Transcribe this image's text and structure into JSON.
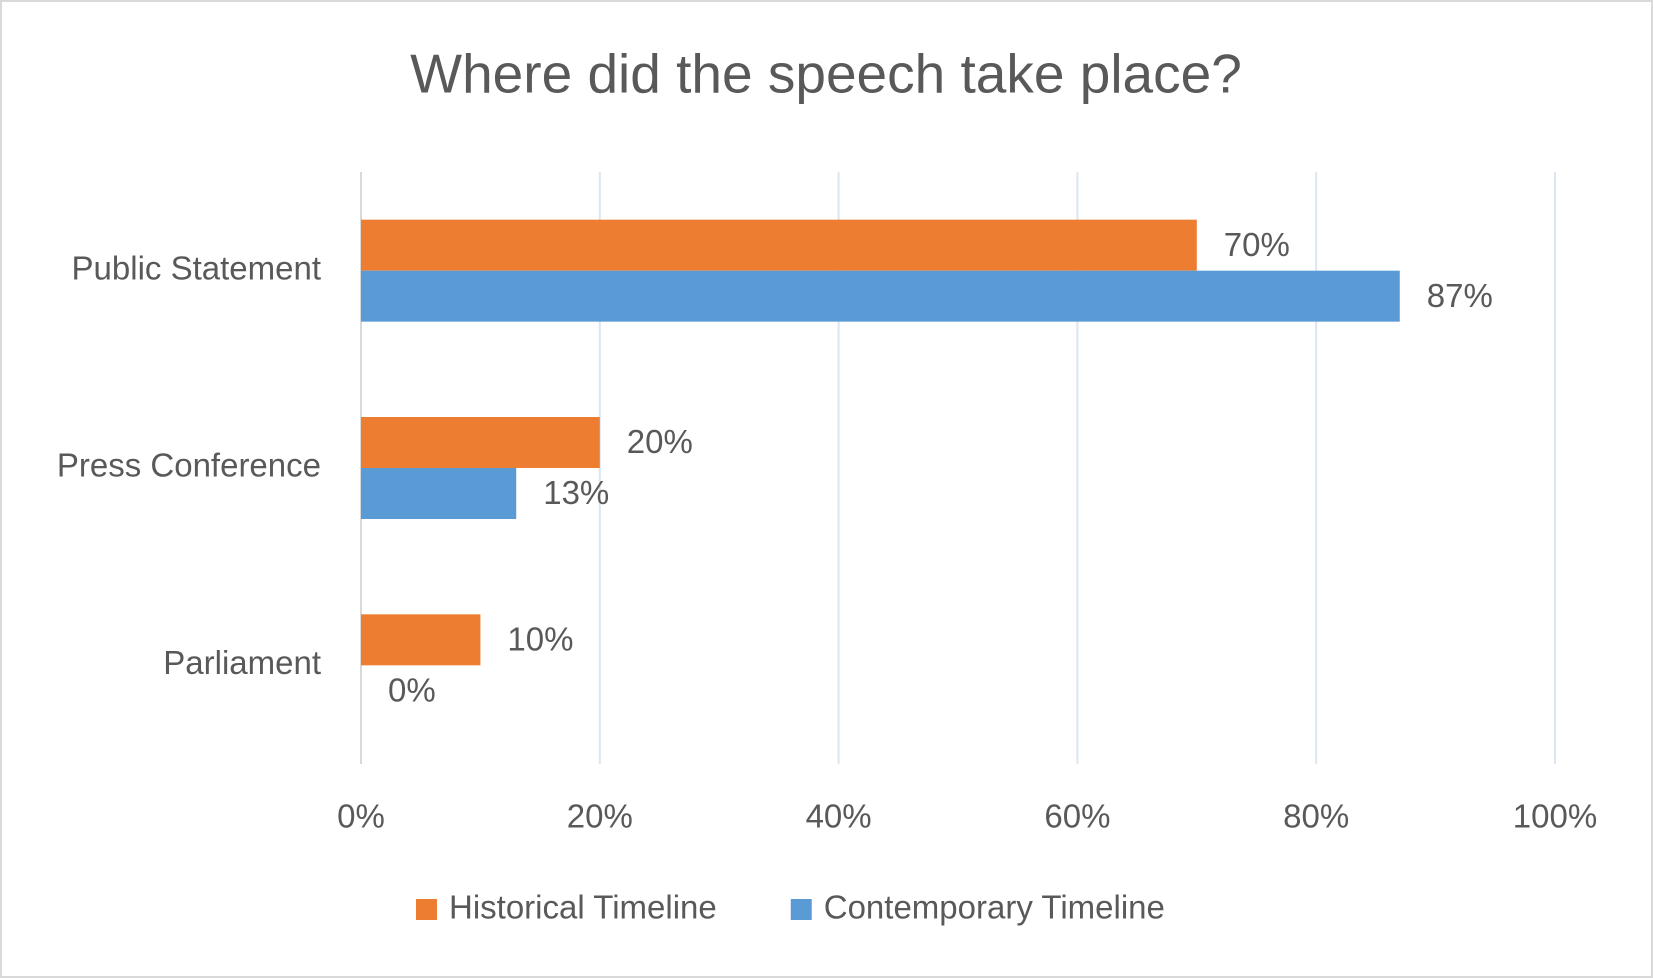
{
  "chart_data": {
    "type": "hbar",
    "title": "Where did the speech take place?",
    "categories": [
      "Public Statement",
      "Press Conference",
      "Parliament"
    ],
    "series": [
      {
        "name": "Historical Timeline",
        "color": "#ed7d31",
        "values": [
          70,
          20,
          10
        ],
        "value_labels": [
          "70%",
          "20%",
          "10%"
        ]
      },
      {
        "name": "Contemporary Timeline",
        "color": "#5b9bd5",
        "values": [
          87,
          13,
          0
        ],
        "value_labels": [
          "87%",
          "13%",
          "0%"
        ]
      }
    ],
    "xlim": [
      0,
      100
    ],
    "xticks": [
      {
        "value": 0,
        "label": "0%"
      },
      {
        "value": 20,
        "label": "20%"
      },
      {
        "value": 40,
        "label": "40%"
      },
      {
        "value": 60,
        "label": "60%"
      },
      {
        "value": 80,
        "label": "80%"
      },
      {
        "value": 100,
        "label": "100%"
      }
    ],
    "grid": true,
    "legend": "bottom"
  }
}
